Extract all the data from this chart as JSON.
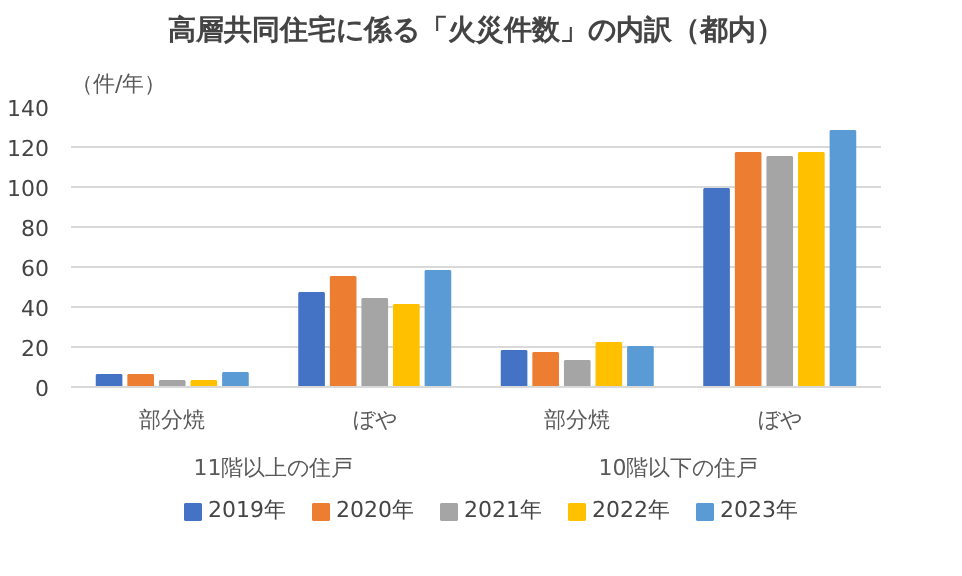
{
  "chart_data": {
    "type": "bar",
    "title": "高層共同住宅に係る「火災件数」の内訳（都内）",
    "ylabel": "（件/年）",
    "categories": [
      "部分焼",
      "ぼや",
      "部分焼",
      "ぼや"
    ],
    "annotations": [
      "11階以上の住戸",
      "10階以下の住戸"
    ],
    "series": [
      {
        "name": "2019年",
        "color": "#4472c4",
        "values": [
          6,
          47,
          18,
          99
        ]
      },
      {
        "name": "2020年",
        "color": "#ed7d31",
        "values": [
          6,
          55,
          17,
          117
        ]
      },
      {
        "name": "2021年",
        "color": "#a5a5a5",
        "values": [
          3,
          44,
          13,
          115
        ]
      },
      {
        "name": "2022年",
        "color": "#ffc000",
        "values": [
          3,
          41,
          22,
          117
        ]
      },
      {
        "name": "2023年",
        "color": "#5b9bd5",
        "values": [
          7,
          58,
          20,
          128
        ]
      }
    ],
    "ylim": [
      0,
      140
    ],
    "yticks": [
      0,
      20,
      40,
      60,
      80,
      100,
      120,
      140
    ],
    "grid": "y",
    "legend": "bottom"
  }
}
